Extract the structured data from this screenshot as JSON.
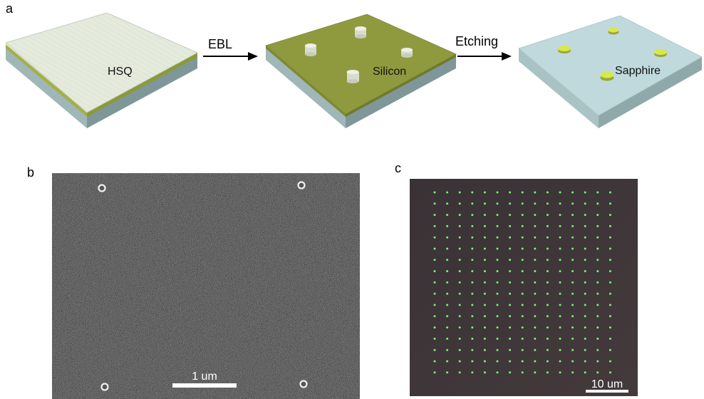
{
  "panel_a": {
    "label": "a",
    "steps": [
      {
        "layer_label": "HSQ"
      },
      {
        "layer_label": "Silicon"
      },
      {
        "layer_label": "Sapphire"
      }
    ],
    "arrows": [
      "EBL",
      "Etching"
    ]
  },
  "panel_b": {
    "label": "b",
    "scale_bar": "1 um",
    "image": "SEM micrograph, noisy grey background with four ring-shaped pillars near the corners"
  },
  "panel_c": {
    "label": "c",
    "scale_bar": "10 um",
    "image": "Dark-field optical image: square array of green dots on brown-grey substrate"
  },
  "colors": {
    "hsq_top": "#e6ecde",
    "silicon_top": "#8f9a3e",
    "sapphire_top": "#bfd9dc",
    "substrate_side": "#8fa9ab",
    "pillar_green": "#d8e84a",
    "darkfield_bg": "#3b3236",
    "darkfield_dot": "#7cf07c"
  }
}
